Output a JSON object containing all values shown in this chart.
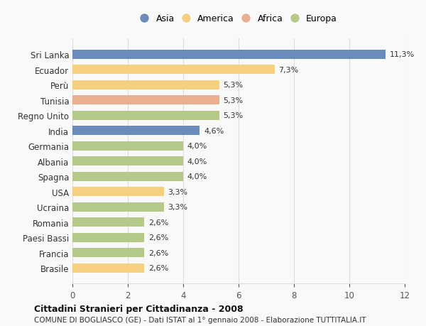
{
  "categories": [
    "Sri Lanka",
    "Ecuador",
    "Perù",
    "Tunisia",
    "Regno Unito",
    "India",
    "Germania",
    "Albania",
    "Spagna",
    "USA",
    "Ucraina",
    "Romania",
    "Paesi Bassi",
    "Francia",
    "Brasile"
  ],
  "values": [
    11.3,
    7.3,
    5.3,
    5.3,
    5.3,
    4.6,
    4.0,
    4.0,
    4.0,
    3.3,
    3.3,
    2.6,
    2.6,
    2.6,
    2.6
  ],
  "labels": [
    "11,3%",
    "7,3%",
    "5,3%",
    "5,3%",
    "5,3%",
    "4,6%",
    "4,0%",
    "4,0%",
    "4,0%",
    "3,3%",
    "3,3%",
    "2,6%",
    "2,6%",
    "2,6%",
    "2,6%"
  ],
  "colors": [
    "#6b8cba",
    "#f5d080",
    "#f5d080",
    "#e8b090",
    "#b5c98a",
    "#6b8cba",
    "#b5c98a",
    "#b5c98a",
    "#b5c98a",
    "#f5d080",
    "#b5c98a",
    "#b5c98a",
    "#b5c98a",
    "#b5c98a",
    "#f5d080"
  ],
  "continent_labels": [
    "Asia",
    "America",
    "Africa",
    "Europa"
  ],
  "continent_colors": [
    "#6b8cba",
    "#f5d080",
    "#e8b090",
    "#b5c98a"
  ],
  "xlim": [
    0,
    12
  ],
  "xticks": [
    0,
    2,
    4,
    6,
    8,
    10,
    12
  ],
  "title": "Cittadini Stranieri per Cittadinanza - 2008",
  "subtitle": "COMUNE DI BOGLIASCO (GE) - Dati ISTAT al 1° gennaio 2008 - Elaborazione TUTTITALIA.IT",
  "bg_color": "#f9f9f9",
  "grid_color": "#dddddd"
}
